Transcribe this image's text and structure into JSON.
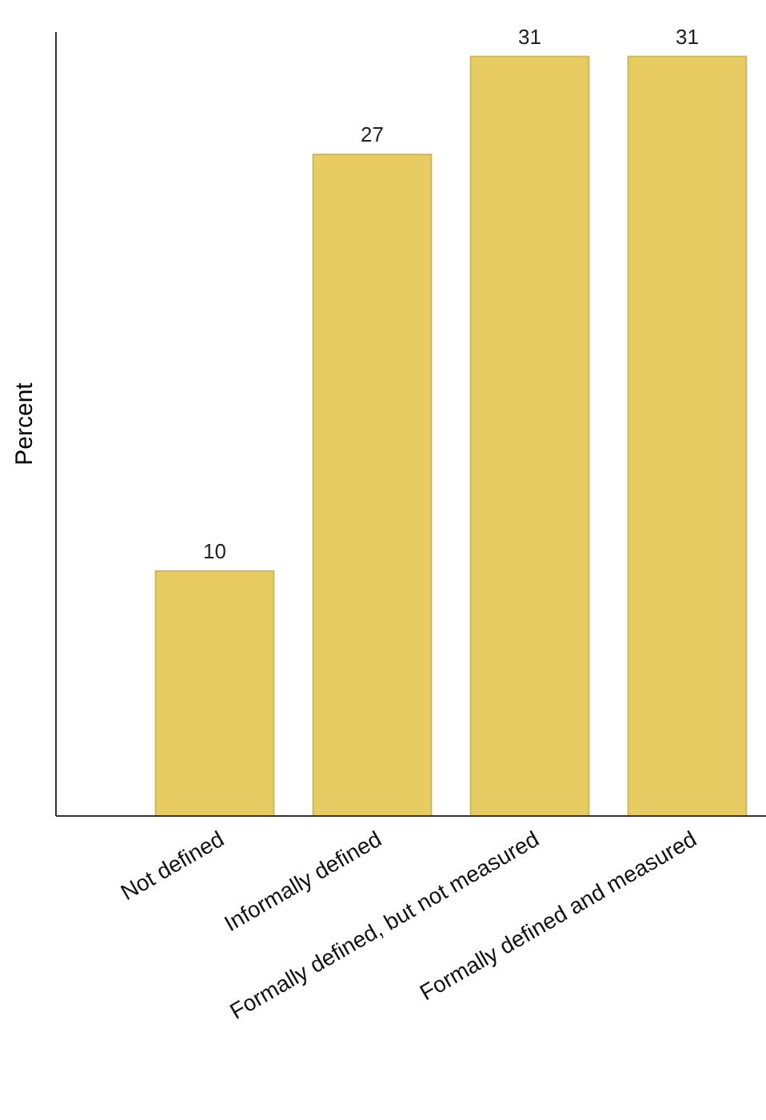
{
  "chart_data": {
    "type": "bar",
    "ylabel": "Percent",
    "categories": [
      "Not defined",
      "Informally defined",
      "Formally defined, but not measured",
      "Formally defined and measured"
    ],
    "values": [
      10,
      27,
      31,
      31
    ],
    "color": "#e6cc62",
    "ylim": [
      0,
      32
    ],
    "tick_labels": "x",
    "data_labels": true
  }
}
